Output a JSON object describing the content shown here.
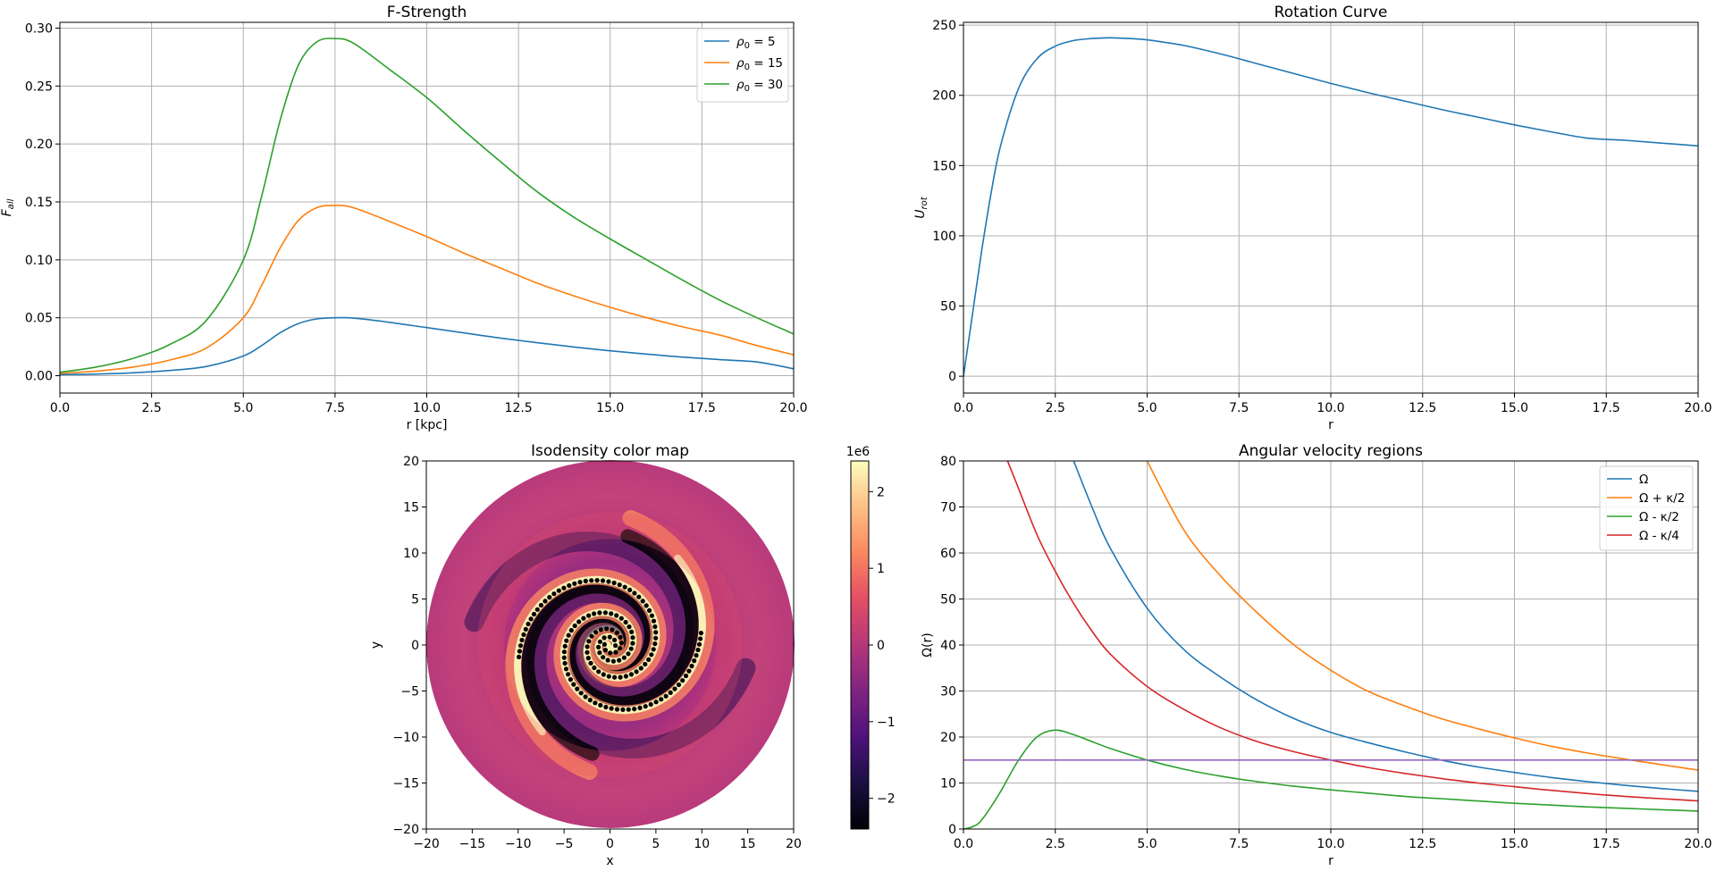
{
  "chart_data": [
    {
      "id": "fstrength",
      "type": "line",
      "title": "F-Strength",
      "xlabel": "r [kpc]",
      "ylabel": "F_all",
      "xlim": [
        0,
        20
      ],
      "ylim": [
        -0.015,
        0.305
      ],
      "xticks": [
        "0.0",
        "2.5",
        "5.0",
        "7.5",
        "10.0",
        "12.5",
        "15.0",
        "17.5",
        "20.0"
      ],
      "yticks": [
        "0.00",
        "0.05",
        "0.10",
        "0.15",
        "0.20",
        "0.25",
        "0.30"
      ],
      "grid": true,
      "legend": "top-right",
      "x": [
        0,
        1,
        2,
        3,
        4,
        5,
        5.5,
        6,
        6.5,
        7,
        7.5,
        8,
        9,
        10,
        11,
        12,
        13,
        14,
        15,
        16,
        17,
        18,
        19,
        20
      ],
      "series": [
        {
          "name": "ρ0 = 5",
          "label_sym": "ρ",
          "label_sub": "0",
          "label_rest": " = 5",
          "color": "#1f77b4",
          "values": [
            0.001,
            0.0014,
            0.0025,
            0.0045,
            0.008,
            0.017,
            0.026,
            0.037,
            0.045,
            0.049,
            0.05,
            0.0497,
            0.046,
            0.0415,
            0.037,
            0.0325,
            0.0285,
            0.0248,
            0.0215,
            0.0186,
            0.016,
            0.0138,
            0.0118,
            0.006
          ]
        },
        {
          "name": "ρ0 = 15",
          "label_sym": "ρ",
          "label_sub": "0",
          "label_rest": " = 15",
          "color": "#ff7f0e",
          "values": [
            0.002,
            0.004,
            0.0075,
            0.0135,
            0.024,
            0.05,
            0.078,
            0.11,
            0.134,
            0.145,
            0.147,
            0.145,
            0.133,
            0.12,
            0.106,
            0.093,
            0.08,
            0.069,
            0.059,
            0.05,
            0.042,
            0.035,
            0.026,
            0.018
          ]
        },
        {
          "name": "ρ0 = 30",
          "label_sym": "ρ",
          "label_sub": "0",
          "label_rest": " = 30",
          "color": "#2ca02c",
          "values": [
            0.003,
            0.0075,
            0.015,
            0.027,
            0.048,
            0.1,
            0.155,
            0.22,
            0.268,
            0.288,
            0.291,
            0.287,
            0.264,
            0.24,
            0.212,
            0.185,
            0.159,
            0.137,
            0.118,
            0.1,
            0.082,
            0.065,
            0.05,
            0.036
          ]
        }
      ]
    },
    {
      "id": "rotation",
      "type": "line",
      "title": "Rotation Curve",
      "xlabel": "r",
      "ylabel": "U_rot",
      "xlim": [
        0,
        20
      ],
      "ylim": [
        -12,
        252
      ],
      "xticks": [
        "0.0",
        "2.5",
        "5.0",
        "7.5",
        "10.0",
        "12.5",
        "15.0",
        "17.5",
        "20.0"
      ],
      "yticks": [
        "0",
        "50",
        "100",
        "150",
        "200",
        "250"
      ],
      "grid": true,
      "x": [
        0,
        0.25,
        0.5,
        0.75,
        1,
        1.5,
        2,
        2.5,
        3,
        3.5,
        4,
        4.5,
        5,
        6,
        7,
        8,
        9,
        10,
        11,
        12,
        13,
        14,
        15,
        16,
        17,
        18,
        19,
        20
      ],
      "series": [
        {
          "color": "#1f77b4",
          "values": [
            0,
            45,
            90,
            130,
            163,
            205,
            226,
            235,
            239,
            240.5,
            241,
            240.5,
            239.5,
            235.5,
            229.5,
            222.5,
            215.5,
            208.5,
            202,
            196,
            190,
            184.5,
            179,
            174,
            169.5,
            168,
            166,
            164
          ]
        }
      ]
    },
    {
      "id": "isodensity",
      "type": "heatmap",
      "title": "Isodensity color map",
      "xlabel": "x",
      "ylabel": "y",
      "xlim": [
        -20,
        20
      ],
      "ylim": [
        -20,
        20
      ],
      "xticks": [
        "−20",
        "−15",
        "−10",
        "−5",
        "0",
        "5",
        "10",
        "15",
        "20"
      ],
      "yticks": [
        "−20",
        "−15",
        "−10",
        "−5",
        "0",
        "5",
        "10",
        "15",
        "20"
      ],
      "colorbar": {
        "min": -2.4,
        "max": 2.4,
        "ticks": [
          "−2",
          "−1",
          "0",
          "1",
          "2"
        ],
        "offset_label": "1e6",
        "colormap": "magma"
      },
      "spiral_arms": 2,
      "arm_radius_max": 10,
      "points_color": "#000000"
    },
    {
      "id": "angular",
      "type": "line",
      "title": "Angular velocity regions",
      "xlabel": "r",
      "ylabel": "Ω(r)",
      "xlim": [
        0,
        20
      ],
      "ylim": [
        0,
        80
      ],
      "xticks": [
        "0.0",
        "2.5",
        "5.0",
        "7.5",
        "10.0",
        "12.5",
        "15.0",
        "17.5",
        "20.0"
      ],
      "yticks": [
        "0",
        "10",
        "20",
        "30",
        "40",
        "50",
        "60",
        "70",
        "80"
      ],
      "grid": true,
      "legend": "top-right",
      "x": [
        0,
        0.25,
        0.5,
        1,
        1.5,
        2,
        2.5,
        3,
        3.5,
        4,
        5,
        6,
        7,
        8,
        9,
        10,
        11,
        12,
        13,
        14,
        15,
        16,
        17,
        18,
        19,
        20
      ],
      "series": [
        {
          "name": "Ω",
          "color": "#1f77b4",
          "values": [
            null,
            null,
            null,
            null,
            null,
            null,
            null,
            80,
            70,
            61,
            48,
            39,
            33,
            28,
            24,
            21,
            18.8,
            16.8,
            15,
            13.5,
            12.3,
            11.2,
            10.3,
            9.5,
            8.8,
            8.2
          ]
        },
        {
          "name": "Ω + κ/2",
          "color": "#ff7f0e",
          "values": [
            null,
            null,
            null,
            null,
            null,
            null,
            null,
            null,
            null,
            null,
            80,
            65,
            55,
            47,
            40,
            34.5,
            30,
            26.8,
            24,
            21.8,
            19.8,
            18,
            16.5,
            15.2,
            14,
            12.8
          ]
        },
        {
          "name": "Ω - κ/2",
          "color": "#2ca02c",
          "values": [
            0,
            0.5,
            2,
            8,
            15,
            20,
            21.5,
            20.5,
            19,
            17.5,
            15,
            13,
            11.5,
            10.3,
            9.3,
            8.5,
            7.8,
            7.1,
            6.6,
            6.1,
            5.6,
            5.2,
            4.8,
            4.5,
            4.2,
            3.9
          ]
        },
        {
          "name": "Ω - κ/4",
          "color": "#d62728",
          "values": [
            null,
            null,
            null,
            null,
            74,
            64,
            56,
            49,
            43,
            38,
            31,
            26,
            22,
            19,
            16.8,
            15,
            13.4,
            12.1,
            11,
            10,
            9.2,
            8.4,
            7.7,
            7.1,
            6.6,
            6.1
          ]
        },
        {
          "color": "#9467bd",
          "values": [
            15,
            15,
            15,
            15,
            15,
            15,
            15,
            15,
            15,
            15,
            15,
            15,
            15,
            15,
            15,
            15,
            15,
            15,
            15,
            15,
            15,
            15,
            15,
            15,
            15,
            15
          ]
        }
      ]
    }
  ]
}
